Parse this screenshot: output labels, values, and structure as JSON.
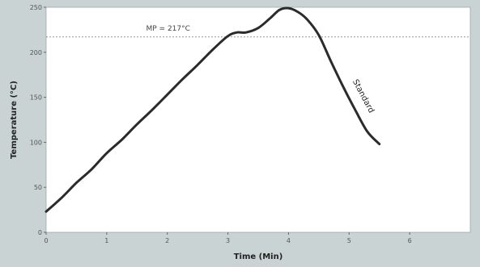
{
  "chart_data": {
    "type": "line",
    "title": "",
    "xlabel": "Time (Min)",
    "ylabel": "Temperature (°C)",
    "xlim": [
      0,
      7
    ],
    "ylim": [
      0,
      250
    ],
    "x_ticks": [
      "0",
      "1",
      "2",
      "3",
      "4",
      "5",
      "6"
    ],
    "y_ticks": [
      "0",
      "50",
      "100",
      "150",
      "200",
      "250"
    ],
    "grid": false,
    "colors": {
      "background": "#c9d3d3",
      "plot_bg": "#ffffff",
      "line": "#2b2b2b",
      "reference": "#888888"
    },
    "reference_line": {
      "y": 217,
      "label": "MP = 217°C"
    },
    "series": [
      {
        "name": "Standard",
        "x": [
          0,
          0.25,
          0.5,
          0.75,
          1.0,
          1.25,
          1.5,
          1.75,
          2.0,
          2.25,
          2.5,
          2.75,
          3.0,
          3.15,
          3.3,
          3.5,
          3.7,
          3.85,
          4.0,
          4.15,
          4.3,
          4.5,
          4.7,
          4.9,
          5.1,
          5.3,
          5.5
        ],
        "y": [
          23,
          38,
          55,
          70,
          88,
          103,
          120,
          136,
          153,
          170,
          186,
          203,
          218,
          222,
          222,
          227,
          238,
          247,
          249,
          245,
          237,
          219,
          190,
          162,
          136,
          112,
          98
        ]
      }
    ]
  }
}
